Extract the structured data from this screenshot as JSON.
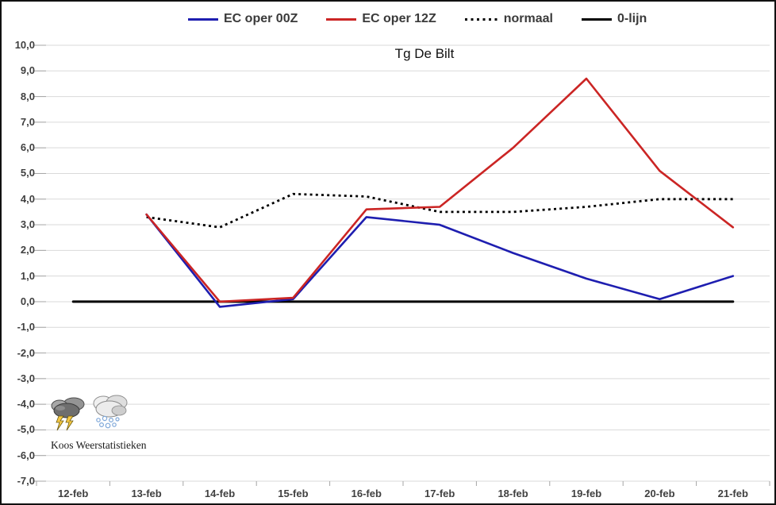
{
  "title": "Tg De Bilt",
  "legend": {
    "items": [
      {
        "label": "EC oper 00Z",
        "color": "#1e1eb0",
        "style": "solid"
      },
      {
        "label": "EC oper 12Z",
        "color": "#cb2524",
        "style": "solid"
      },
      {
        "label": "normaal",
        "color": "#000000",
        "style": "dotted"
      },
      {
        "label": "0-lijn",
        "color": "#000000",
        "style": "solid"
      }
    ]
  },
  "watermark": {
    "text": "Koos Weerstatistieken",
    "icons": [
      "storm-cloud-icon",
      "snow-cloud-icon"
    ]
  },
  "colors": {
    "gridline": "#d9d9d9",
    "tick": "#a6a6a6",
    "axis_label": "#404040"
  },
  "chart_data": {
    "type": "line",
    "title": "Tg De Bilt",
    "xlabel": "",
    "ylabel": "",
    "legend_position": "top",
    "grid": true,
    "ylim": [
      -7,
      10
    ],
    "y_ticks": [
      "10,0",
      "9,0",
      "8,0",
      "7,0",
      "6,0",
      "5,0",
      "4,0",
      "3,0",
      "2,0",
      "1,0",
      "0,0",
      "-1,0",
      "-2,0",
      "-3,0",
      "-4,0",
      "-5,0",
      "-6,0",
      "-7,0"
    ],
    "categories": [
      "12-feb",
      "13-feb",
      "14-feb",
      "15-feb",
      "16-feb",
      "17-feb",
      "18-feb",
      "19-feb",
      "20-feb",
      "21-feb"
    ],
    "series": [
      {
        "name": "EC oper 00Z",
        "color": "#1e1eb0",
        "style": "solid",
        "width": 2.6,
        "values": [
          null,
          3.4,
          -0.2,
          0.1,
          3.3,
          3.0,
          1.9,
          0.9,
          0.1,
          1.0
        ]
      },
      {
        "name": "EC oper 12Z",
        "color": "#cb2524",
        "style": "solid",
        "width": 2.6,
        "values": [
          null,
          3.4,
          0.0,
          0.15,
          3.6,
          3.7,
          6.0,
          8.7,
          5.1,
          2.9
        ]
      },
      {
        "name": "normaal",
        "color": "#000000",
        "style": "dotted",
        "width": 2.8,
        "values": [
          null,
          3.3,
          2.9,
          4.2,
          4.1,
          3.5,
          3.5,
          3.7,
          4.0,
          4.0
        ]
      },
      {
        "name": "0-lijn",
        "color": "#000000",
        "style": "solid",
        "width": 3,
        "values": [
          0,
          0,
          0,
          0,
          0,
          0,
          0,
          0,
          0,
          0
        ]
      }
    ]
  }
}
